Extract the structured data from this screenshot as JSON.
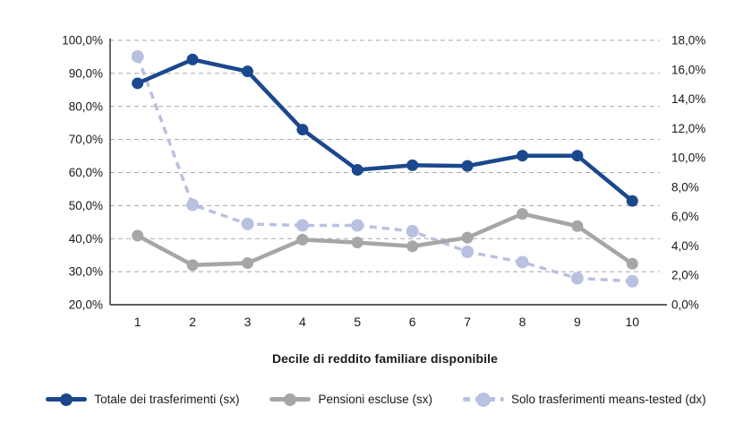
{
  "chart_data": {
    "type": "line",
    "title": "",
    "xlabel": "Decile di reddito familiare disponibile",
    "x_tick_labels": [
      "1",
      "2",
      "3",
      "4",
      "5",
      "6",
      "7",
      "8",
      "9",
      "10"
    ],
    "left_axis": {
      "min": 20,
      "max": 100,
      "tick_labels": [
        "100,0%",
        "90,0%",
        "80,0%",
        "70,0%",
        "60,0%",
        "50,0%",
        "40,0%",
        "30,0%",
        "20,0%"
      ]
    },
    "right_axis": {
      "min": 0,
      "max": 18,
      "tick_labels": [
        "18,0%",
        "16,0%",
        "14,0%",
        "12,0%",
        "10,0%",
        "8,0%",
        "6,0%",
        "4,0%",
        "2,0%",
        "0,0%"
      ]
    },
    "grid": true,
    "legend_position": "bottom",
    "series": [
      {
        "name": "Totale dei trasferimenti (sx)",
        "axis": "left",
        "style": "solid",
        "color": "#1B488D",
        "values": [
          87.0,
          94.2,
          90.6,
          73.0,
          60.8,
          62.2,
          62.0,
          65.1,
          65.1,
          51.4
        ]
      },
      {
        "name": "Pensioni escluse (sx)",
        "axis": "left",
        "style": "solid",
        "color": "#A6A6A6",
        "values": [
          40.9,
          32.0,
          32.6,
          39.7,
          38.8,
          37.7,
          40.3,
          47.5,
          43.8,
          32.4
        ]
      },
      {
        "name": "Solo trasferimenti means-tested (dx)",
        "axis": "right",
        "style": "dashed",
        "color": "#B9C1E1",
        "values": [
          16.9,
          6.8,
          5.5,
          5.4,
          5.4,
          5.0,
          3.6,
          2.9,
          1.8,
          1.6
        ]
      }
    ],
    "colors": {
      "gridline": "#A8A8A8",
      "axis_line": "#2b2b2b",
      "tick_text": "#1a1a1a"
    }
  }
}
